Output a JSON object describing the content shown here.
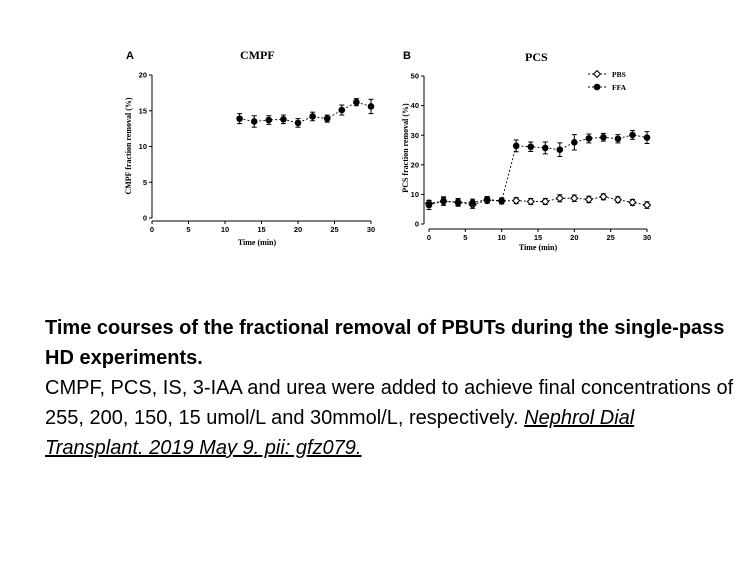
{
  "chart_data": [
    {
      "type": "scatter",
      "panel": "A",
      "title": "CMPF",
      "xlabel": "Time (min)",
      "ylabel": "CMPF fraction removal (%)",
      "xlim": [
        0,
        30
      ],
      "ylim": [
        0,
        20
      ],
      "xticks": [
        0,
        5,
        10,
        15,
        20,
        25,
        30
      ],
      "yticks": [
        0,
        5,
        10,
        15,
        20
      ],
      "series": [
        {
          "x": [
            12,
            14,
            16,
            18,
            20,
            22,
            24,
            26,
            28,
            30
          ],
          "y": [
            13.9,
            13.5,
            13.7,
            13.8,
            13.3,
            14.2,
            13.9,
            15.1,
            16.2,
            15.6
          ],
          "err": [
            0.7,
            0.8,
            0.6,
            0.6,
            0.6,
            0.6,
            0.5,
            0.7,
            0.5,
            1.0
          ],
          "marker": "filled-circle"
        }
      ]
    },
    {
      "type": "scatter",
      "panel": "B",
      "title": "PCS",
      "xlabel": "Time (min)",
      "ylabel": "PCS fraction removal (%)",
      "xlim": [
        0,
        30
      ],
      "ylim": [
        0,
        50
      ],
      "xticks": [
        0,
        5,
        10,
        15,
        20,
        25,
        30
      ],
      "yticks": [
        0,
        10,
        20,
        30,
        40,
        50
      ],
      "legend": "top-right",
      "series": [
        {
          "name": "PBS",
          "marker": "open-diamond",
          "x": [
            0,
            2,
            4,
            6,
            8,
            10,
            12,
            14,
            16,
            18,
            20,
            22,
            24,
            26,
            28,
            30
          ],
          "y": [
            7.0,
            7.6,
            7.4,
            6.5,
            8.0,
            7.8,
            7.9,
            7.6,
            7.6,
            8.7,
            8.7,
            8.3,
            9.2,
            8.2,
            7.3,
            6.4
          ],
          "err": [
            1.0,
            1.3,
            1.2,
            1.2,
            1.0,
            1.0,
            1.0,
            1.0,
            1.0,
            1.2,
            1.1,
            1.1,
            1.0,
            1.0,
            1.0,
            1.1
          ]
        },
        {
          "name": "FFA",
          "marker": "filled-circle",
          "x": [
            0,
            2,
            4,
            6,
            8,
            10,
            12,
            14,
            16,
            18,
            20,
            22,
            24,
            26,
            28,
            30
          ],
          "y": [
            6.4,
            7.8,
            7.2,
            7.2,
            8.3,
            7.8,
            26.4,
            26.1,
            25.7,
            25.1,
            27.6,
            28.9,
            29.3,
            28.8,
            30.1,
            29.2
          ],
          "err": [
            1.5,
            1.4,
            1.2,
            1.2,
            1.0,
            1.0,
            2.0,
            1.6,
            2.0,
            2.3,
            2.6,
            1.5,
            1.3,
            1.4,
            1.5,
            2.0
          ]
        }
      ]
    }
  ],
  "caption": {
    "title": "Time courses of the fractional removal of PBUTs during the single-pass HD experiments.",
    "body": "CMPF, PCS, IS, 3-IAA and urea were added to achieve final concentrations of 255, 200, 150, 15 umol/L and 30mmol/L, respectively. ",
    "citation": "Nephrol Dial Transplant. 2019 May 9. pii: gfz079."
  }
}
